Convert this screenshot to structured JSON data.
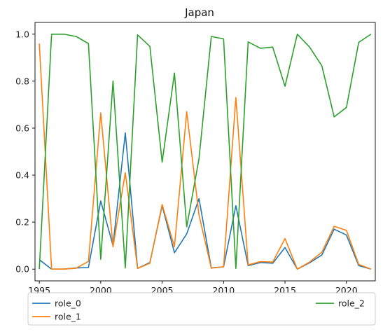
{
  "chart_data": {
    "type": "line",
    "title": "Japan",
    "xlabel": "",
    "ylabel": "",
    "xlim": [
      1994.65,
      2022.35
    ],
    "ylim": [
      -0.05,
      1.05
    ],
    "x": [
      1995,
      1996,
      1997,
      1998,
      1999,
      2000,
      2001,
      2002,
      2003,
      2004,
      2005,
      2006,
      2007,
      2008,
      2009,
      2010,
      2011,
      2012,
      2013,
      2014,
      2015,
      2016,
      2017,
      2018,
      2019,
      2020,
      2021,
      2022
    ],
    "x_ticks": [
      1995,
      2000,
      2005,
      2010,
      2015,
      2020
    ],
    "y_ticks": [
      0.0,
      0.2,
      0.4,
      0.6,
      0.8,
      1.0
    ],
    "y_tick_labels": [
      "0.0",
      "0.2",
      "0.4",
      "0.6",
      "0.8",
      "1.0"
    ],
    "grid": false,
    "legend_position": "bottom-outside",
    "series": [
      {
        "name": "role_0",
        "color": "#1f77b4",
        "values": [
          0.04,
          0.0,
          0.0,
          0.005,
          0.007,
          0.29,
          0.1,
          0.58,
          0.003,
          0.028,
          0.27,
          0.07,
          0.15,
          0.3,
          0.005,
          0.01,
          0.27,
          0.015,
          0.028,
          0.025,
          0.092,
          0.0,
          0.027,
          0.06,
          0.17,
          0.145,
          0.015,
          0.0
        ]
      },
      {
        "name": "role_1",
        "color": "#ff7f0e",
        "values": [
          0.96,
          0.0,
          0.0,
          0.004,
          0.033,
          0.665,
          0.095,
          0.41,
          0.003,
          0.025,
          0.275,
          0.095,
          0.67,
          0.23,
          0.004,
          0.01,
          0.73,
          0.018,
          0.032,
          0.03,
          0.13,
          0.0,
          0.03,
          0.072,
          0.182,
          0.165,
          0.02,
          0.0
        ]
      },
      {
        "name": "role_2",
        "color": "#2ca02c",
        "values": [
          0.0,
          1.0,
          1.0,
          0.99,
          0.96,
          0.042,
          0.8,
          0.005,
          0.997,
          0.948,
          0.455,
          0.835,
          0.18,
          0.47,
          0.99,
          0.98,
          0.003,
          0.967,
          0.94,
          0.945,
          0.778,
          1.0,
          0.945,
          0.865,
          0.648,
          0.688,
          0.965,
          1.0
        ]
      }
    ]
  }
}
